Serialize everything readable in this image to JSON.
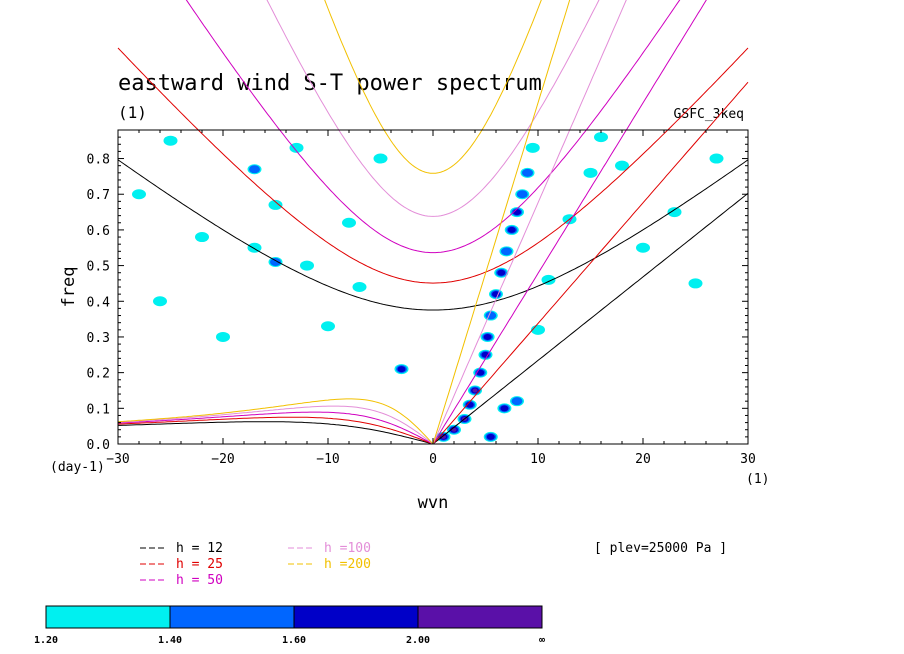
{
  "chart_data": {
    "type": "heatmap",
    "title": "eastward wind S-T power spectrum",
    "subtitle_left": "(1)",
    "subtitle_right": "GSFC_3keq",
    "xlabel": "wvn",
    "ylabel": "freq",
    "x_unit": "(1)",
    "y_unit": "(day-1)",
    "xlim": [
      -30,
      30
    ],
    "ylim": [
      0,
      0.88
    ],
    "x_ticks": [
      -30,
      -20,
      -10,
      0,
      10,
      20,
      30
    ],
    "x_tick_labels": [
      "−30",
      "−20",
      "−10",
      "0",
      "10",
      "20",
      "30"
    ],
    "y_ticks": [
      0,
      0.1,
      0.2,
      0.3,
      0.4,
      0.5,
      0.6,
      0.7,
      0.8
    ],
    "y_tick_labels": [
      "0.0",
      "0.1",
      "0.2",
      "0.3",
      "0.4",
      "0.5",
      "0.6",
      "0.7",
      "0.8"
    ],
    "annotation": "[ plev=25000 Pa ]",
    "series": [
      {
        "name": "h = 12",
        "h": 12,
        "color": "#000000"
      },
      {
        "name": "h = 25",
        "h": 25,
        "color": "#e00000"
      },
      {
        "name": "h = 50",
        "h": 50,
        "color": "#d000c0"
      },
      {
        "name": "h =100",
        "h": 100,
        "color": "#e38ed8"
      },
      {
        "name": "h =200",
        "h": 200,
        "color": "#f2c000"
      }
    ],
    "colorbar": {
      "levels": [
        "1.20",
        "1.40",
        "1.60",
        "2.00",
        "∞"
      ],
      "colors": [
        "#00f0f0",
        "#0066ff",
        "#0000c8",
        "#5a10a8"
      ]
    },
    "power_blobs": [
      {
        "x": 1,
        "y": 0.02,
        "level": 3
      },
      {
        "x": 2,
        "y": 0.04,
        "level": 3
      },
      {
        "x": 3,
        "y": 0.07,
        "level": 3
      },
      {
        "x": 3.5,
        "y": 0.11,
        "level": 2
      },
      {
        "x": 4,
        "y": 0.15,
        "level": 3
      },
      {
        "x": 4.5,
        "y": 0.2,
        "level": 2
      },
      {
        "x": 5,
        "y": 0.25,
        "level": 2
      },
      {
        "x": 5.2,
        "y": 0.3,
        "level": 2
      },
      {
        "x": 5.5,
        "y": 0.36,
        "level": 1
      },
      {
        "x": 6,
        "y": 0.42,
        "level": 2
      },
      {
        "x": 6.5,
        "y": 0.48,
        "level": 2
      },
      {
        "x": 7,
        "y": 0.54,
        "level": 1
      },
      {
        "x": 7.5,
        "y": 0.6,
        "level": 2
      },
      {
        "x": 8,
        "y": 0.65,
        "level": 2
      },
      {
        "x": 8.5,
        "y": 0.7,
        "level": 1
      },
      {
        "x": 9,
        "y": 0.76,
        "level": 1
      },
      {
        "x": 9.5,
        "y": 0.83,
        "level": 0
      },
      {
        "x": 6.8,
        "y": 0.1,
        "level": 2
      },
      {
        "x": 8,
        "y": 0.12,
        "level": 1
      },
      {
        "x": 11,
        "y": 0.46,
        "level": 0
      },
      {
        "x": 13,
        "y": 0.63,
        "level": 0
      },
      {
        "x": 15,
        "y": 0.76,
        "level": 0
      },
      {
        "x": 10,
        "y": 0.32,
        "level": 0
      },
      {
        "x": -3,
        "y": 0.21,
        "level": 2
      },
      {
        "x": -17,
        "y": 0.55,
        "level": 0
      },
      {
        "x": -15,
        "y": 0.51,
        "level": 1
      },
      {
        "x": -22,
        "y": 0.58,
        "level": 0
      },
      {
        "x": -26,
        "y": 0.4,
        "level": 0
      },
      {
        "x": -12,
        "y": 0.5,
        "level": 0
      },
      {
        "x": -10,
        "y": 0.33,
        "level": 0
      },
      {
        "x": -8,
        "y": 0.62,
        "level": 0
      },
      {
        "x": -17,
        "y": 0.77,
        "level": 1
      },
      {
        "x": -25,
        "y": 0.85,
        "level": 0
      },
      {
        "x": -5,
        "y": 0.8,
        "level": 0
      },
      {
        "x": -15,
        "y": 0.67,
        "level": 0
      },
      {
        "x": -20,
        "y": 0.3,
        "level": 0
      },
      {
        "x": -28,
        "y": 0.7,
        "level": 0
      },
      {
        "x": -13,
        "y": 0.83,
        "level": 0
      },
      {
        "x": -7,
        "y": 0.44,
        "level": 0
      },
      {
        "x": 20,
        "y": 0.55,
        "level": 0
      },
      {
        "x": 25,
        "y": 0.45,
        "level": 0
      },
      {
        "x": 18,
        "y": 0.78,
        "level": 0
      },
      {
        "x": 23,
        "y": 0.65,
        "level": 0
      },
      {
        "x": 16,
        "y": 0.86,
        "level": 0
      },
      {
        "x": 27,
        "y": 0.8,
        "level": 0
      },
      {
        "x": 5.5,
        "y": 0.02,
        "level": 2
      }
    ]
  }
}
